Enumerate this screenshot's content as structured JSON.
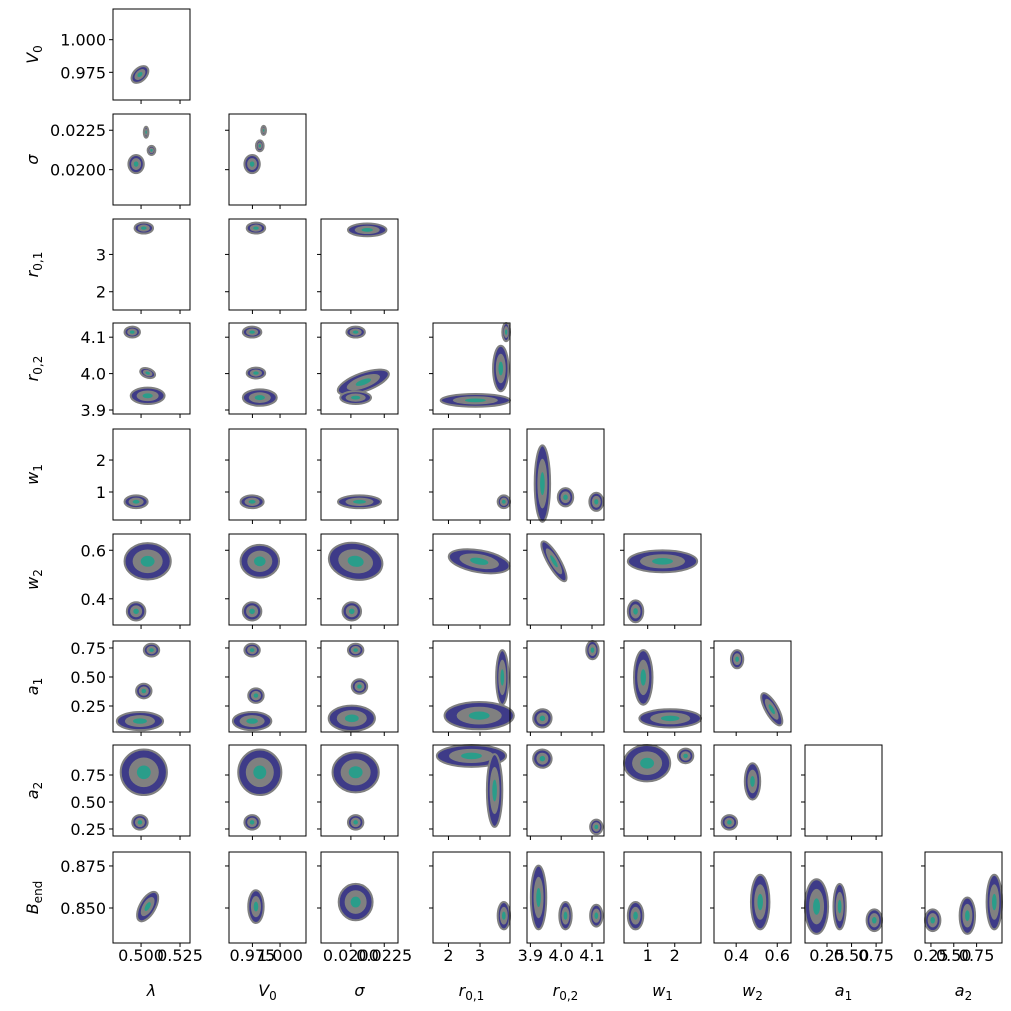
{
  "chart_data": {
    "type": "corner",
    "parameters": [
      {
        "symbol": "λ",
        "lim": [
          0.482,
          0.5314
        ],
        "ticks": [
          {
            "value": 0.5,
            "label": "0.500"
          },
          0.525
        ]
      },
      {
        "symbol": "V",
        "subscript": "0",
        "lim": [
          0.9538,
          1.0235
        ],
        "ticks": [
          0.975,
          {
            "value": 1.0,
            "label": "1.000"
          }
        ]
      },
      {
        "symbol": "σ",
        "lim": [
          0.01776,
          0.02353
        ],
        "ticks": [
          {
            "value": 0.02,
            "label": "0.0200"
          },
          0.0225
        ]
      },
      {
        "symbol": "r",
        "subscript": "0,1",
        "lim": [
          1.51,
          3.95
        ],
        "ticks": [
          2,
          3
        ]
      },
      {
        "symbol": "r",
        "subscript": "0,2",
        "lim": [
          3.889,
          4.139
        ],
        "ticks": [
          3.9,
          {
            "value": 4.0,
            "label": "4.0"
          },
          4.1
        ]
      },
      {
        "symbol": "w",
        "subscript": "1",
        "lim": [
          0.125,
          2.97
        ],
        "ticks": [
          1,
          2
        ]
      },
      {
        "symbol": "w",
        "subscript": "2",
        "lim": [
          0.292,
          0.667
        ],
        "ticks": [
          0.4,
          0.6
        ]
      },
      {
        "symbol": "a",
        "subscript": "1",
        "lim": [
          0.026,
          0.81
        ],
        "ticks": [
          0.25,
          {
            "value": 0.5,
            "label": "0.50"
          },
          0.75
        ]
      },
      {
        "symbol": "a",
        "subscript": "2",
        "lim": [
          0.185,
          1.028
        ],
        "ticks": [
          0.25,
          {
            "value": 0.5,
            "label": "0.50"
          },
          0.75
        ]
      },
      {
        "symbol": "B",
        "subscript": "end",
        "lim": [
          0.8292,
          0.8833
        ],
        "ticks": [
          {
            "value": 0.85,
            "label": "0.850"
          },
          0.875
        ]
      }
    ]
  }
}
